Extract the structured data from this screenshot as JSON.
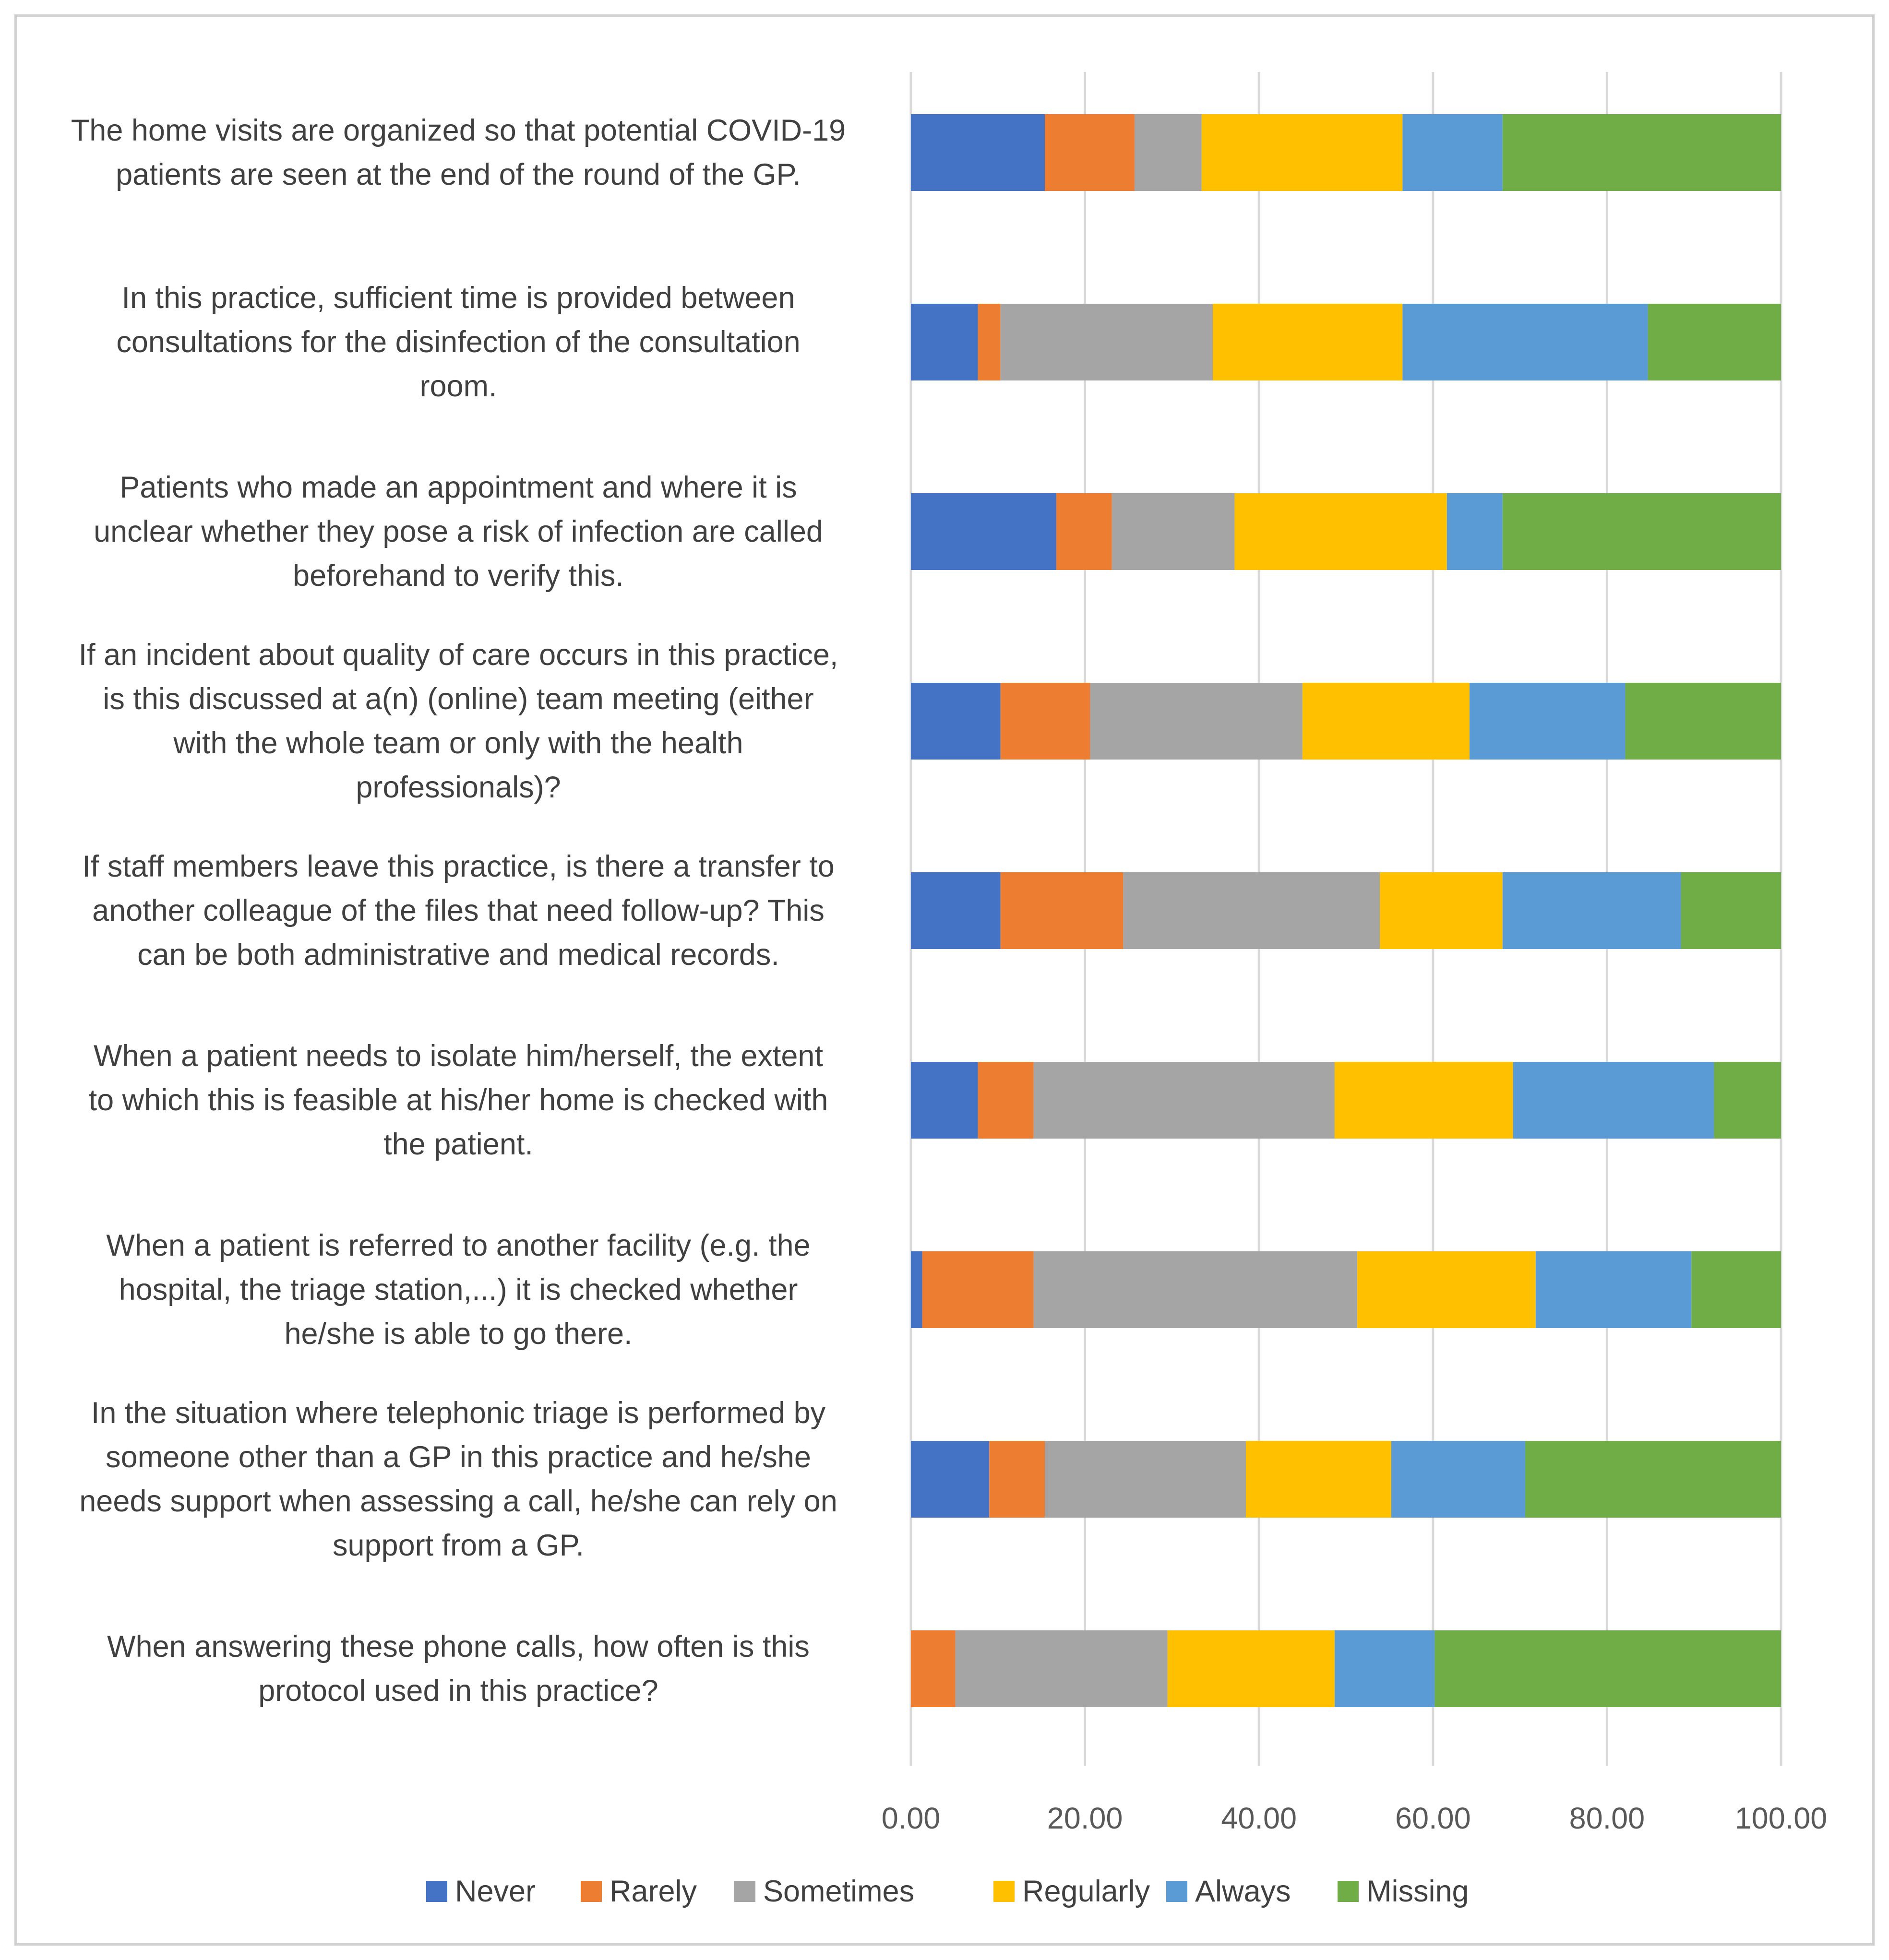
{
  "chart_data": {
    "type": "bar",
    "orientation": "horizontal",
    "stacked": true,
    "title": "",
    "xlabel": "",
    "ylabel": "",
    "xlim": [
      0,
      100
    ],
    "x_ticks": [
      "0.00",
      "20.00",
      "40.00",
      "60.00",
      "80.00",
      "100.00"
    ],
    "grid": true,
    "legend_position": "bottom",
    "categories": [
      [
        "The home visits are organized so that potential COVID-19",
        "patients are seen at the end of the round of the GP."
      ],
      [
        "In this practice, sufficient time is provided between",
        "consultations for the disinfection of the consultation",
        "room."
      ],
      [
        "Patients who made an appointment and where it is",
        "unclear whether they pose a risk of infection are called",
        "beforehand to verify this."
      ],
      [
        "If an incident about quality of care occurs in this practice,",
        "is this discussed at a(n) (online) team meeting (either",
        "with the whole team or only with the health",
        "professionals)?"
      ],
      [
        "If staff members leave this practice, is there a transfer to",
        "another colleague of the files that need follow-up? This",
        "can be both administrative and medical records."
      ],
      [
        "When a patient needs to isolate him/herself, the extent",
        "to which this is feasible at his/her home is checked with",
        "the patient."
      ],
      [
        "When a patient is referred to another facility (e.g. the",
        "hospital, the triage station,...) it is checked whether",
        "he/she is able to go there."
      ],
      [
        "In the situation where telephonic triage is performed by",
        "someone other than a GP in this practice and he/she",
        "needs support when assessing a call, he/she can rely on",
        "support from a GP."
      ],
      [
        "When answering these phone calls, how often is this",
        "protocol used in this practice?"
      ]
    ],
    "series": [
      {
        "name": "Never",
        "color": "#4472C4",
        "values": [
          15.4,
          7.7,
          16.7,
          10.3,
          10.3,
          7.7,
          1.3,
          9.0,
          0.0
        ]
      },
      {
        "name": "Rarely",
        "color": "#ED7D31",
        "values": [
          10.3,
          2.6,
          6.4,
          10.3,
          14.1,
          6.4,
          12.8,
          6.4,
          5.1
        ]
      },
      {
        "name": "Sometimes",
        "color": "#A5A5A5",
        "values": [
          7.7,
          24.4,
          14.1,
          24.4,
          29.5,
          34.6,
          37.2,
          23.1,
          24.4
        ]
      },
      {
        "name": "Regularly",
        "color": "#FFC000",
        "values": [
          23.1,
          21.8,
          24.4,
          19.2,
          14.1,
          20.5,
          20.5,
          16.7,
          19.2
        ]
      },
      {
        "name": "Always",
        "color": "#5B9BD5",
        "values": [
          11.5,
          28.2,
          6.4,
          17.9,
          20.5,
          23.1,
          17.9,
          15.4,
          11.5
        ]
      },
      {
        "name": "Missing",
        "color": "#70AD47",
        "values": [
          32.0,
          15.3,
          32.0,
          17.9,
          11.5,
          7.7,
          10.3,
          29.4,
          39.8
        ]
      }
    ]
  }
}
